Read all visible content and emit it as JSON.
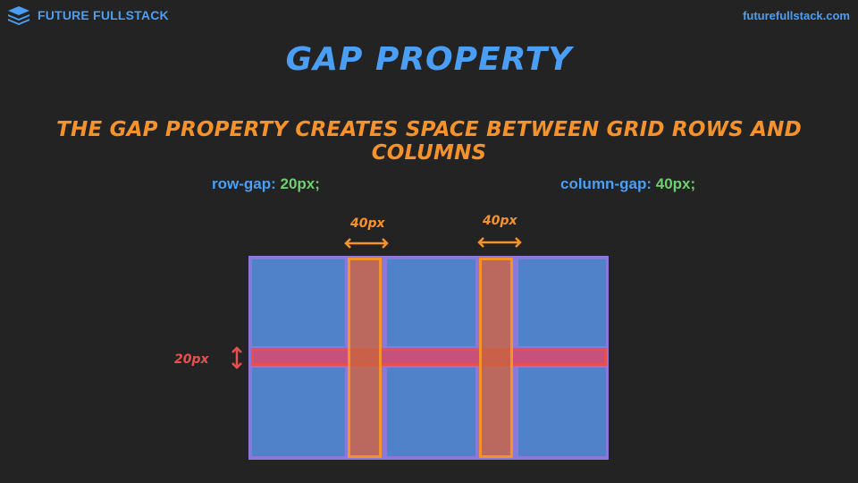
{
  "header": {
    "brand_name": "FUTURE FULLSTACK",
    "site_url": "futurefullstack.com"
  },
  "slide": {
    "title": "GAP PROPERTY",
    "subtitle": "THE GAP PROPERTY CREATES SPACE BETWEEN GRID ROWS AND COLUMNS",
    "row_gap_code": {
      "property": "row-gap:",
      "value": "20px;"
    },
    "column_gap_code": {
      "property": "column-gap:",
      "value": "40px;"
    }
  },
  "diagram": {
    "column_gap_1_label": "40px",
    "column_gap_2_label": "40px",
    "row_gap_label": "20px"
  },
  "colors": {
    "background": "#232323",
    "blue": "#4a9ff5",
    "orange": "#f5922a",
    "green": "#6fce6f",
    "red": "#e8504f",
    "cell": "#4f82c8",
    "container": "#8c78d8"
  }
}
